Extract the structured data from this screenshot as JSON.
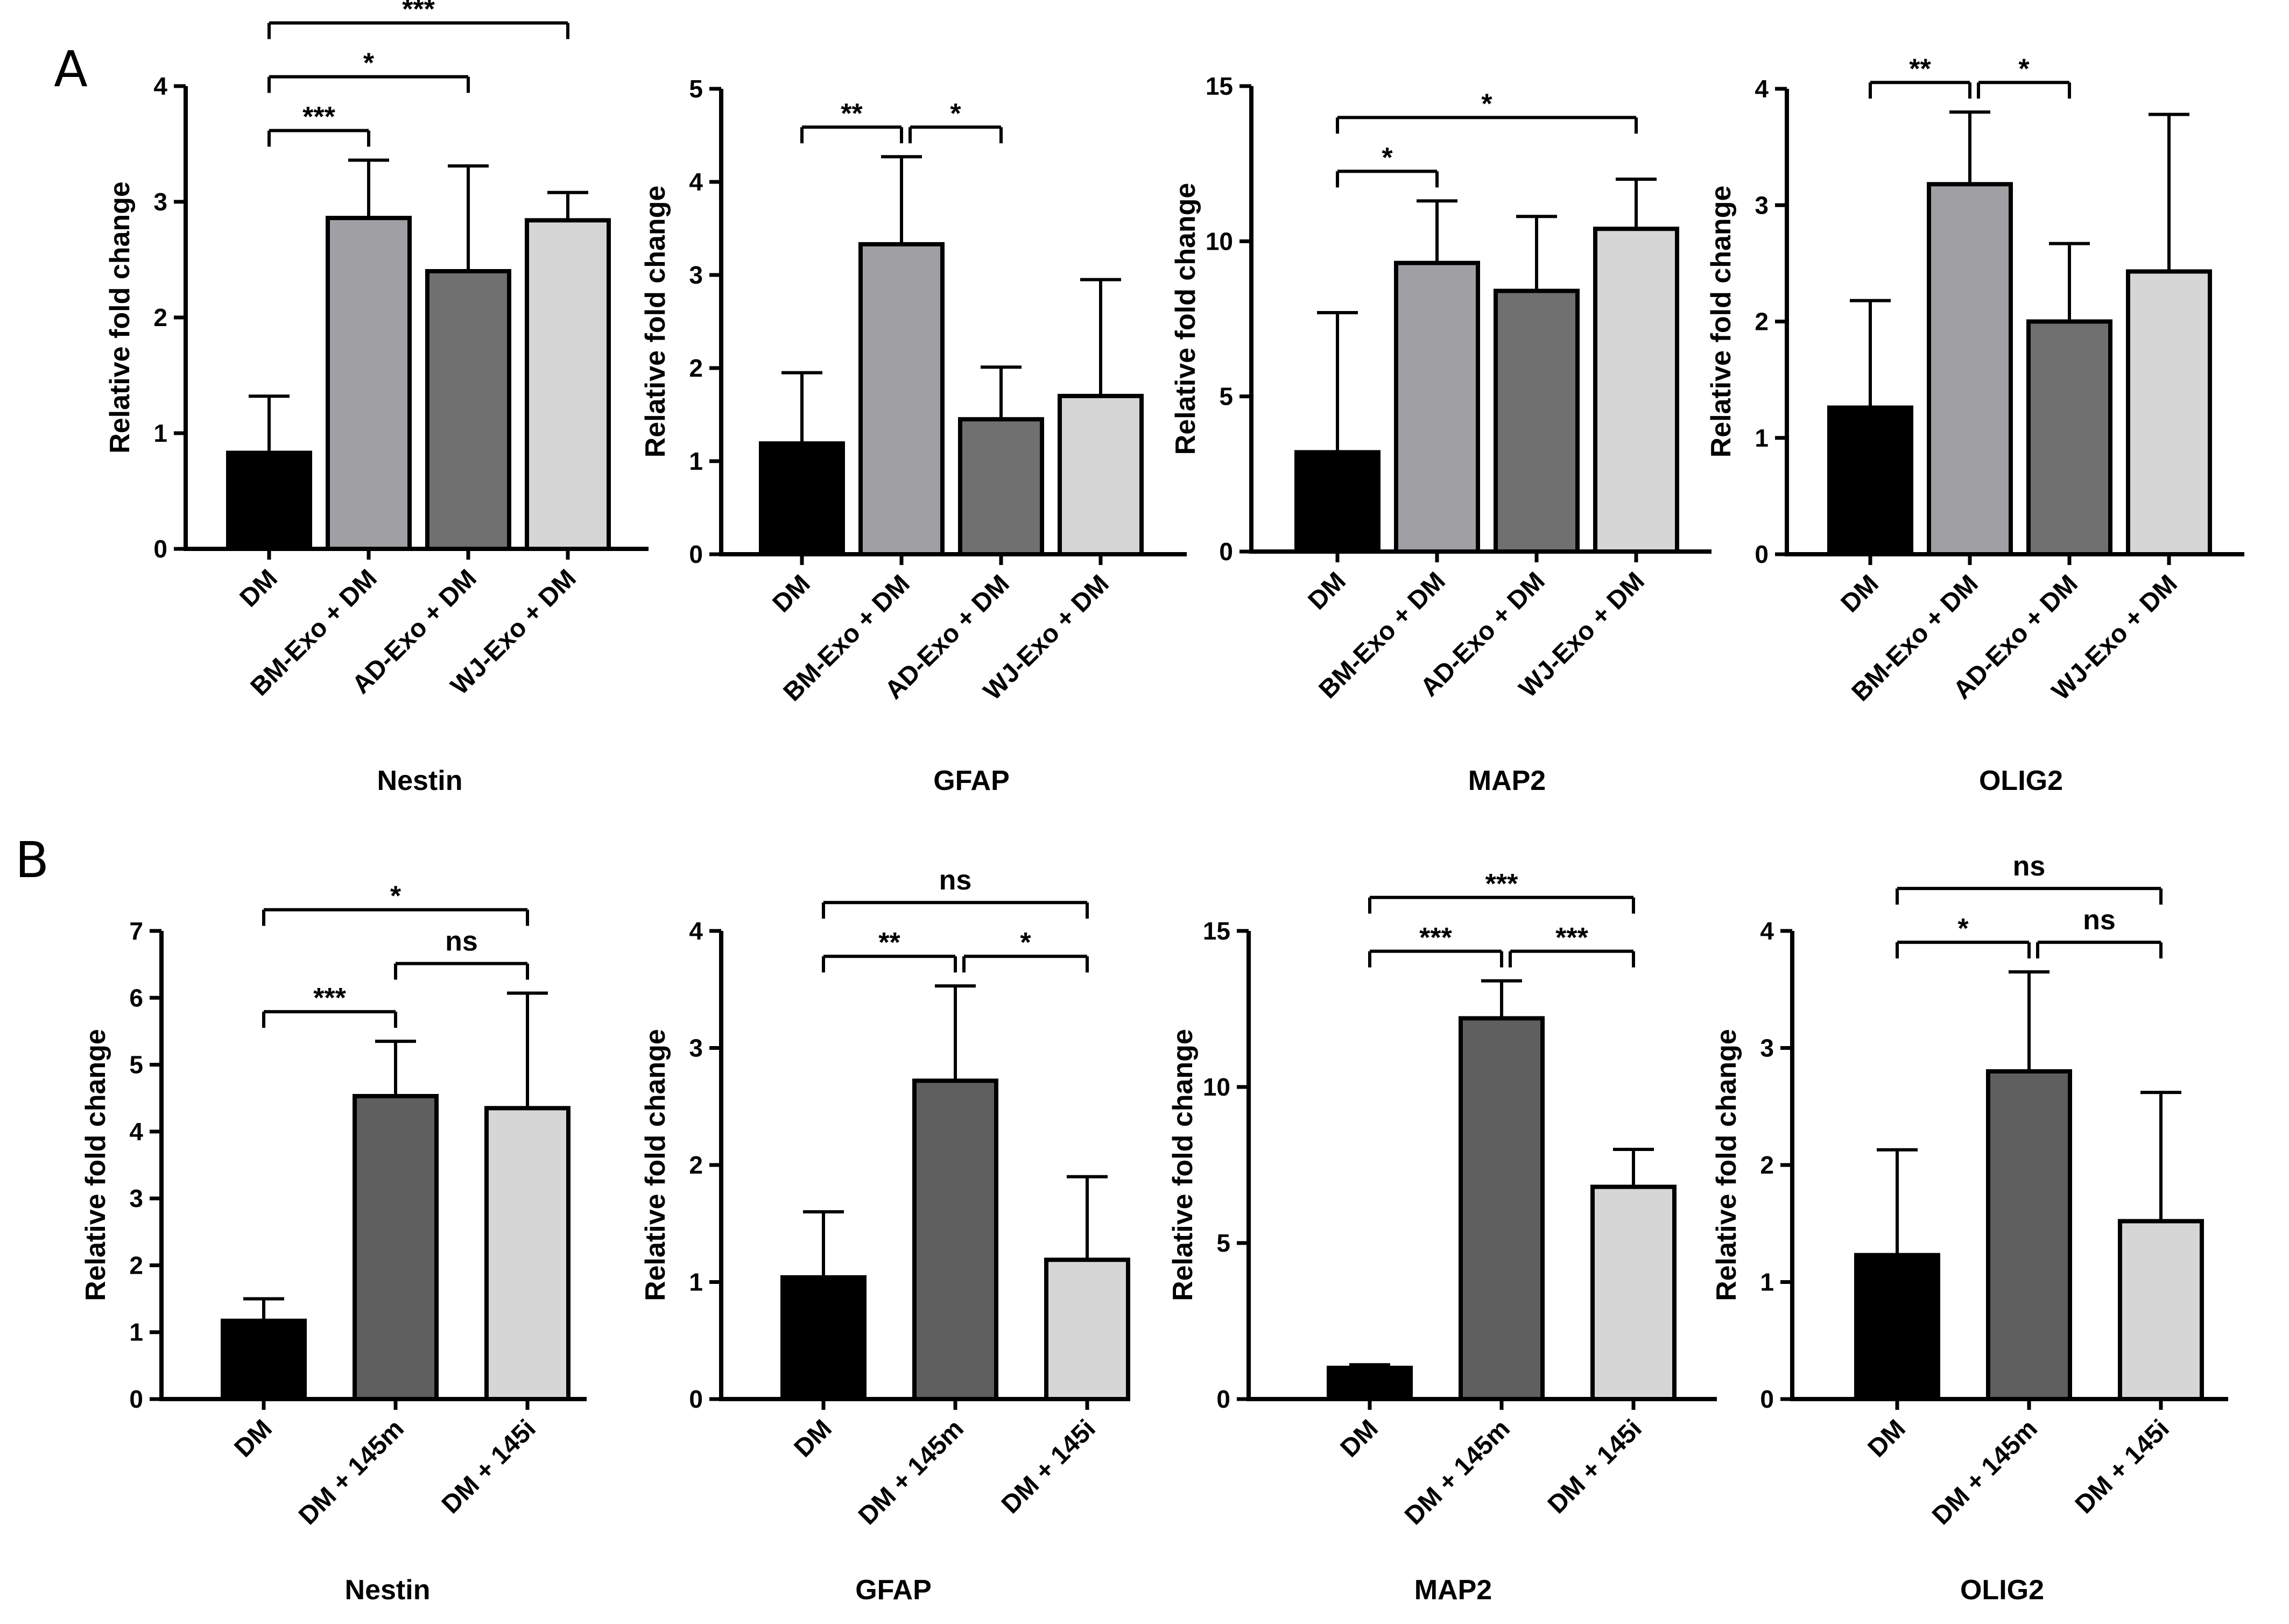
{
  "panels": [
    {
      "letter": "A",
      "groups": [
        {
          "bg": "#000000",
          "name": "DM"
        },
        {
          "bg": "#a09fa4",
          "name": "BM-Exo + DM"
        },
        {
          "bg": "#707070",
          "name": "AD-Exo + DM"
        },
        {
          "bg": "#d6d6d6",
          "name": "WJ-Exo + DM"
        }
      ]
    },
    {
      "letter": "B",
      "groups": [
        {
          "bg": "#000000",
          "name": "DM"
        },
        {
          "bg": "#5f5f5f",
          "name": "DM + 145m"
        },
        {
          "bg": "#d6d6d6",
          "name": "DM + 145i"
        }
      ]
    }
  ],
  "chart_data": [
    {
      "type": "bar",
      "panel": "A",
      "title": "Nestin",
      "ylabel": "Relative fold change",
      "ylim": [
        0,
        4
      ],
      "yticks": [
        0,
        1,
        2,
        3,
        4
      ],
      "categories": [
        "DM",
        "BM-Exo + DM",
        "AD-Exo + DM",
        "WJ-Exo + DM"
      ],
      "values": [
        0.83,
        2.86,
        2.4,
        2.84
      ],
      "errors": [
        0.49,
        0.5,
        0.91,
        0.24
      ],
      "significance": [
        {
          "a": 0,
          "b": 1,
          "label": "***"
        },
        {
          "a": 0,
          "b": 2,
          "label": "*"
        },
        {
          "a": 0,
          "b": 3,
          "label": "***"
        }
      ]
    },
    {
      "type": "bar",
      "panel": "A",
      "title": "GFAP",
      "ylabel": "Relative fold change",
      "ylim": [
        0,
        5
      ],
      "yticks": [
        0,
        1,
        2,
        3,
        4,
        5
      ],
      "categories": [
        "DM",
        "BM-Exo + DM",
        "AD-Exo + DM",
        "WJ-Exo + DM"
      ],
      "values": [
        1.19,
        3.33,
        1.45,
        1.7
      ],
      "errors": [
        0.76,
        0.94,
        0.56,
        1.25
      ],
      "significance": [
        {
          "a": 0,
          "b": 1,
          "label": "**"
        },
        {
          "a": 1,
          "b": 2,
          "label": "*"
        }
      ]
    },
    {
      "type": "bar",
      "panel": "A",
      "title": "MAP2",
      "ylabel": "Relative fold change",
      "ylim": [
        0,
        15
      ],
      "yticks": [
        0,
        5,
        10,
        15
      ],
      "categories": [
        "DM",
        "BM-Exo + DM",
        "AD-Exo + DM",
        "WJ-Exo + DM"
      ],
      "values": [
        3.2,
        9.3,
        8.4,
        10.4
      ],
      "errors": [
        4.5,
        2.0,
        2.4,
        1.6
      ],
      "significance": [
        {
          "a": 0,
          "b": 1,
          "label": "*"
        },
        {
          "a": 0,
          "b": 3,
          "label": "*"
        }
      ]
    },
    {
      "type": "bar",
      "panel": "A",
      "title": "OLIG2",
      "ylabel": "Relative fold change",
      "ylim": [
        0,
        4
      ],
      "yticks": [
        0,
        1,
        2,
        3,
        4
      ],
      "categories": [
        "DM",
        "BM-Exo + DM",
        "AD-Exo + DM",
        "WJ-Exo + DM"
      ],
      "values": [
        1.26,
        3.18,
        2.0,
        2.43
      ],
      "errors": [
        0.92,
        0.62,
        0.67,
        1.35
      ],
      "significance": [
        {
          "a": 0,
          "b": 1,
          "label": "**"
        },
        {
          "a": 1,
          "b": 2,
          "label": "*"
        }
      ]
    },
    {
      "type": "bar",
      "panel": "B",
      "title": "Nestin",
      "ylabel": "Relative fold change",
      "ylim": [
        0,
        7
      ],
      "yticks": [
        0,
        1,
        2,
        3,
        4,
        5,
        6,
        7
      ],
      "categories": [
        "DM",
        "DM + 145m",
        "DM + 145i"
      ],
      "values": [
        1.17,
        4.53,
        4.35
      ],
      "errors": [
        0.33,
        0.82,
        1.72
      ],
      "significance": [
        {
          "a": 0,
          "b": 1,
          "label": "***"
        },
        {
          "a": 0,
          "b": 2,
          "label": "*"
        },
        {
          "a": 1,
          "b": 2,
          "label": "ns"
        }
      ]
    },
    {
      "type": "bar",
      "panel": "B",
      "title": "GFAP",
      "ylabel": "Relative fold change",
      "ylim": [
        0,
        4
      ],
      "yticks": [
        0,
        1,
        2,
        3,
        4
      ],
      "categories": [
        "DM",
        "DM + 145m",
        "DM + 145i"
      ],
      "values": [
        1.04,
        2.72,
        1.19
      ],
      "errors": [
        0.56,
        0.81,
        0.71
      ],
      "significance": [
        {
          "a": 0,
          "b": 1,
          "label": "**"
        },
        {
          "a": 1,
          "b": 2,
          "label": "*"
        },
        {
          "a": 0,
          "b": 2,
          "label": "ns"
        }
      ]
    },
    {
      "type": "bar",
      "panel": "B",
      "title": "MAP2",
      "ylabel": "Relative fold change",
      "ylim": [
        0,
        15
      ],
      "yticks": [
        0,
        5,
        10,
        15
      ],
      "categories": [
        "DM",
        "DM + 145m",
        "DM + 145i"
      ],
      "values": [
        1.0,
        12.2,
        6.8
      ],
      "errors": [
        0.1,
        1.2,
        1.2
      ],
      "significance": [
        {
          "a": 0,
          "b": 1,
          "label": "***"
        },
        {
          "a": 1,
          "b": 2,
          "label": "***"
        },
        {
          "a": 0,
          "b": 2,
          "label": "***"
        }
      ]
    },
    {
      "type": "bar",
      "panel": "B",
      "title": "OLIG2",
      "ylabel": "Relative fold change",
      "ylim": [
        0,
        4
      ],
      "yticks": [
        0,
        1,
        2,
        3,
        4
      ],
      "categories": [
        "DM",
        "DM + 145m",
        "DM + 145i"
      ],
      "values": [
        1.23,
        2.8,
        1.52
      ],
      "errors": [
        0.9,
        0.85,
        1.1
      ],
      "significance": [
        {
          "a": 0,
          "b": 1,
          "label": "*"
        },
        {
          "a": 1,
          "b": 2,
          "label": "ns"
        },
        {
          "a": 0,
          "b": 2,
          "label": "ns"
        }
      ]
    }
  ]
}
